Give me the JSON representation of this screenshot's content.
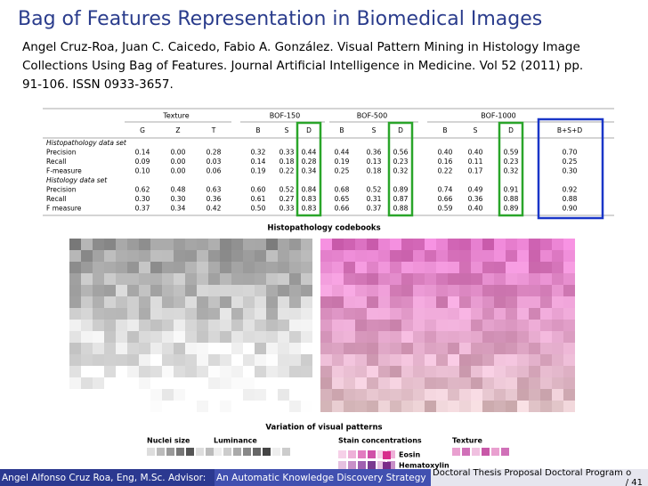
{
  "header": {
    "title": "Bag of Features Representation in Biomedical Images"
  },
  "citation": [
    "Angel Cruz-Roa, Juan C. Caicedo, Fabio A. González. Visual Pattern Mining in Histology Image",
    "Collections Using Bag of Features. Journal Artificial Intelligence in Medicine. Vol 52 (2011) pp.",
    "91-106. ISSN 0933-3657."
  ],
  "table": {
    "groups": [
      "Texture",
      "BOF-150",
      "BOF-500",
      "BOF-1000"
    ],
    "columns": [
      "G",
      "Z",
      "T",
      "B",
      "S",
      "D",
      "B",
      "S",
      "D",
      "B",
      "S",
      "D",
      "B+S+D"
    ],
    "sections": [
      {
        "title": "Histopathology data set",
        "rows": [
          {
            "label": "Precision",
            "values": [
              "0.14",
              "0.00",
              "0.28",
              "0.32",
              "0.33",
              "0.44",
              "0.44",
              "0.36",
              "0.56",
              "0.40",
              "0.40",
              "0.59",
              "0.70"
            ]
          },
          {
            "label": "Recall",
            "values": [
              "0.09",
              "0.00",
              "0.03",
              "0.14",
              "0.18",
              "0.28",
              "0.19",
              "0.13",
              "0.23",
              "0.16",
              "0.11",
              "0.23",
              "0.25"
            ]
          },
          {
            "label": "F-measure",
            "values": [
              "0.10",
              "0.00",
              "0.06",
              "0.19",
              "0.22",
              "0.34",
              "0.25",
              "0.18",
              "0.32",
              "0.22",
              "0.17",
              "0.32",
              "0.30"
            ]
          }
        ]
      },
      {
        "title": "Histology data set",
        "rows": [
          {
            "label": "Precision",
            "values": [
              "0.62",
              "0.48",
              "0.63",
              "0.60",
              "0.52",
              "0.84",
              "0.68",
              "0.52",
              "0.89",
              "0.74",
              "0.49",
              "0.91",
              "0.92"
            ]
          },
          {
            "label": "Recall",
            "values": [
              "0.30",
              "0.30",
              "0.36",
              "0.61",
              "0.27",
              "0.83",
              "0.65",
              "0.31",
              "0.87",
              "0.66",
              "0.36",
              "0.88",
              "0.88"
            ]
          },
          {
            "label": "F measure",
            "values": [
              "0.37",
              "0.34",
              "0.42",
              "0.50",
              "0.33",
              "0.83",
              "0.66",
              "0.37",
              "0.88",
              "0.59",
              "0.40",
              "0.89",
              "0.90"
            ]
          }
        ]
      }
    ]
  },
  "figure": {
    "codebooks_title": "Histopathology codebooks",
    "variation_title": "Variation of visual patterns",
    "legend": [
      "Nuclei size",
      "Luminance",
      "Stain concentrations",
      "Texture"
    ],
    "stains": [
      "Eosin",
      "Hematoxylin"
    ]
  },
  "footer": {
    "author": "Angel Alfonso Cruz Roa, Eng, M.Sc. Advisor:",
    "talk": "An Automatic Knowledge Discovery Strategy",
    "program": "Doctoral Thesis Proposal Doctoral Program o",
    "pages": "/ 41"
  }
}
